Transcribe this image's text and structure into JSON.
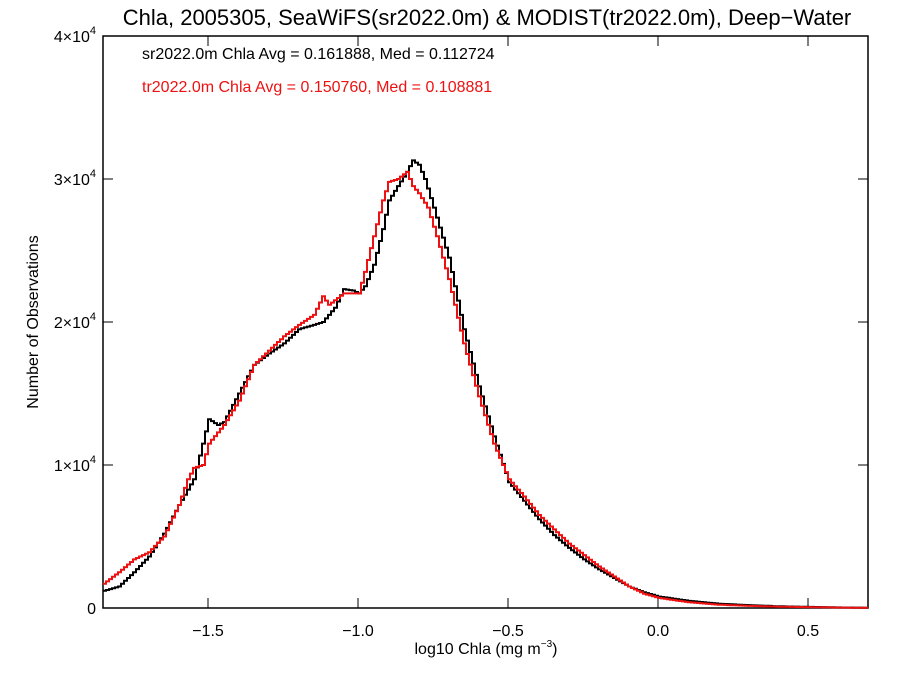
{
  "chart_data": {
    "type": "line",
    "step": true,
    "title": "Chla, 2005305, SeaWiFS(sr2022.0m) & MODIST(tr2022.0m), Deep−Water",
    "xlabel_main": "log10 Chla (mg m",
    "xlabel_sup": "−3",
    "xlabel_end": ")",
    "ylabel": "Number of Observations",
    "xlim": [
      -1.85,
      0.7
    ],
    "ylim": [
      0,
      40000
    ],
    "x_ticks": [
      {
        "value": -1.5,
        "label": "−1.5"
      },
      {
        "value": -1.0,
        "label": "−1.0"
      },
      {
        "value": -0.5,
        "label": "−0.5"
      },
      {
        "value": 0.0,
        "label": "0.0"
      },
      {
        "value": 0.5,
        "label": "0.5"
      }
    ],
    "y_ticks": [
      {
        "value": 0,
        "base": "0",
        "exp": ""
      },
      {
        "value": 10000,
        "base": "1×10",
        "exp": "4"
      },
      {
        "value": 20000,
        "base": "2×10",
        "exp": "4"
      },
      {
        "value": 30000,
        "base": "3×10",
        "exp": "4"
      },
      {
        "value": 40000,
        "base": "4×10",
        "exp": "4"
      }
    ],
    "grid": false,
    "annotations": [
      {
        "text": "sr2022.0m Chla Avg = 0.161888, Med = 0.112724",
        "color": "#000000"
      },
      {
        "text": "tr2022.0m Chla Avg = 0.150760, Med = 0.108881",
        "color": "#ee1111"
      }
    ],
    "series": [
      {
        "color": "#000000",
        "points": [
          [
            -1.85,
            1200
          ],
          [
            -1.8,
            1500
          ],
          [
            -1.75,
            2500
          ],
          [
            -1.7,
            3600
          ],
          [
            -1.65,
            5200
          ],
          [
            -1.6,
            7200
          ],
          [
            -1.55,
            9000
          ],
          [
            -1.52,
            11500
          ],
          [
            -1.5,
            13200
          ],
          [
            -1.47,
            12800
          ],
          [
            -1.45,
            13000
          ],
          [
            -1.4,
            15000
          ],
          [
            -1.35,
            17000
          ],
          [
            -1.3,
            17800
          ],
          [
            -1.25,
            18500
          ],
          [
            -1.2,
            19500
          ],
          [
            -1.15,
            19800
          ],
          [
            -1.12,
            20000
          ],
          [
            -1.08,
            21000
          ],
          [
            -1.05,
            22300
          ],
          [
            -1.02,
            22200
          ],
          [
            -1.0,
            22000
          ],
          [
            -0.98,
            22500
          ],
          [
            -0.95,
            24000
          ],
          [
            -0.92,
            26500
          ],
          [
            -0.9,
            28500
          ],
          [
            -0.87,
            29500
          ],
          [
            -0.84,
            30500
          ],
          [
            -0.82,
            31300
          ],
          [
            -0.8,
            31000
          ],
          [
            -0.78,
            30000
          ],
          [
            -0.75,
            28000
          ],
          [
            -0.7,
            24500
          ],
          [
            -0.65,
            19500
          ],
          [
            -0.6,
            15500
          ],
          [
            -0.55,
            12000
          ],
          [
            -0.5,
            8800
          ],
          [
            -0.45,
            7500
          ],
          [
            -0.4,
            6200
          ],
          [
            -0.35,
            5100
          ],
          [
            -0.3,
            4200
          ],
          [
            -0.25,
            3400
          ],
          [
            -0.2,
            2700
          ],
          [
            -0.15,
            2100
          ],
          [
            -0.1,
            1500
          ],
          [
            -0.05,
            1100
          ],
          [
            0.0,
            800
          ],
          [
            0.1,
            500
          ],
          [
            0.2,
            300
          ],
          [
            0.3,
            200
          ],
          [
            0.4,
            120
          ],
          [
            0.5,
            80
          ],
          [
            0.6,
            40
          ],
          [
            0.7,
            20
          ]
        ]
      },
      {
        "color": "#ee1111",
        "points": [
          [
            -1.85,
            1700
          ],
          [
            -1.8,
            2500
          ],
          [
            -1.75,
            3400
          ],
          [
            -1.7,
            3900
          ],
          [
            -1.65,
            5000
          ],
          [
            -1.6,
            7200
          ],
          [
            -1.57,
            9000
          ],
          [
            -1.55,
            9800
          ],
          [
            -1.52,
            10000
          ],
          [
            -1.5,
            11500
          ],
          [
            -1.45,
            12800
          ],
          [
            -1.4,
            14500
          ],
          [
            -1.35,
            17000
          ],
          [
            -1.3,
            18000
          ],
          [
            -1.25,
            19000
          ],
          [
            -1.2,
            19800
          ],
          [
            -1.15,
            20500
          ],
          [
            -1.12,
            21800
          ],
          [
            -1.1,
            21200
          ],
          [
            -1.05,
            22000
          ],
          [
            -1.0,
            22000
          ],
          [
            -0.98,
            23500
          ],
          [
            -0.95,
            26000
          ],
          [
            -0.92,
            28500
          ],
          [
            -0.9,
            29800
          ],
          [
            -0.87,
            30000
          ],
          [
            -0.84,
            30500
          ],
          [
            -0.82,
            29500
          ],
          [
            -0.8,
            29000
          ],
          [
            -0.77,
            28000
          ],
          [
            -0.74,
            26000
          ],
          [
            -0.7,
            23000
          ],
          [
            -0.65,
            18500
          ],
          [
            -0.6,
            14800
          ],
          [
            -0.55,
            11500
          ],
          [
            -0.5,
            9000
          ],
          [
            -0.45,
            7800
          ],
          [
            -0.4,
            6500
          ],
          [
            -0.35,
            5500
          ],
          [
            -0.3,
            4500
          ],
          [
            -0.25,
            3700
          ],
          [
            -0.2,
            2900
          ],
          [
            -0.15,
            2200
          ],
          [
            -0.1,
            1500
          ],
          [
            -0.05,
            1000
          ],
          [
            0.0,
            700
          ],
          [
            0.1,
            400
          ],
          [
            0.2,
            230
          ],
          [
            0.3,
            150
          ],
          [
            0.4,
            90
          ],
          [
            0.5,
            60
          ],
          [
            0.6,
            30
          ],
          [
            0.7,
            15
          ]
        ]
      }
    ]
  }
}
